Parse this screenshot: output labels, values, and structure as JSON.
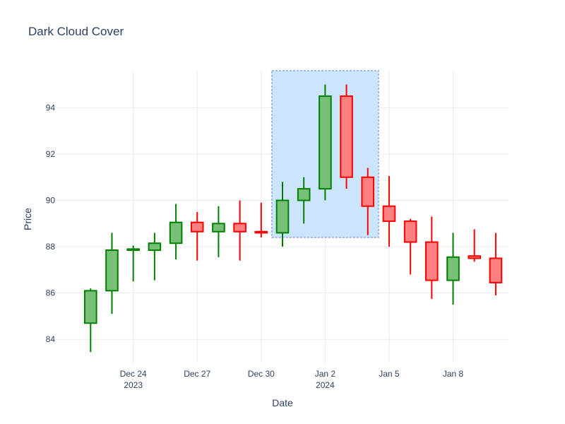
{
  "chart_data": {
    "type": "candlestick",
    "title": "Dark Cloud Cover",
    "xlabel": "Date",
    "ylabel": "Price",
    "ylim": [
      83,
      95.6
    ],
    "yticks": [
      84,
      86,
      88,
      90,
      92,
      94
    ],
    "xrange": [
      "2023-12-21",
      "2024-01-10"
    ],
    "xticks": [
      {
        "date": "2023-12-24",
        "label": "Dec 24",
        "sublabel": "2023"
      },
      {
        "date": "2023-12-27",
        "label": "Dec 27",
        "sublabel": ""
      },
      {
        "date": "2023-12-30",
        "label": "Dec 30",
        "sublabel": ""
      },
      {
        "date": "2024-01-02",
        "label": "Jan 2",
        "sublabel": "2024"
      },
      {
        "date": "2024-01-05",
        "label": "Jan 5",
        "sublabel": ""
      },
      {
        "date": "2024-01-08",
        "label": "Jan 8",
        "sublabel": ""
      }
    ],
    "increasing_color": "#008000",
    "decreasing_color": "#ff0000",
    "highlight": {
      "x0": "2023-12-31",
      "x1": "2024-01-04",
      "y0": 88.4,
      "y1": 95.6,
      "color": "#cce5ff",
      "line_color": "#a0b8f0"
    },
    "candles": [
      {
        "date": "2023-12-22",
        "open": 84.7,
        "high": 86.2,
        "low": 83.45,
        "close": 86.1
      },
      {
        "date": "2023-12-23",
        "open": 86.1,
        "high": 88.6,
        "low": 85.1,
        "close": 87.85
      },
      {
        "date": "2023-12-24",
        "open": 87.85,
        "high": 88.05,
        "low": 86.5,
        "close": 87.9
      },
      {
        "date": "2023-12-25",
        "open": 87.85,
        "high": 88.6,
        "low": 86.55,
        "close": 88.15
      },
      {
        "date": "2023-12-26",
        "open": 88.15,
        "high": 89.85,
        "low": 87.45,
        "close": 89.05
      },
      {
        "date": "2023-12-27",
        "open": 89.05,
        "high": 89.5,
        "low": 87.4,
        "close": 88.65
      },
      {
        "date": "2023-12-28",
        "open": 88.65,
        "high": 89.75,
        "low": 87.55,
        "close": 89.0
      },
      {
        "date": "2023-12-29",
        "open": 89.0,
        "high": 90.0,
        "low": 87.4,
        "close": 88.65
      },
      {
        "date": "2023-12-30",
        "open": 88.65,
        "high": 89.9,
        "low": 88.4,
        "close": 88.6
      },
      {
        "date": "2023-12-31",
        "open": 88.6,
        "high": 90.8,
        "low": 88.0,
        "close": 90.0
      },
      {
        "date": "2024-01-01",
        "open": 90.0,
        "high": 91.0,
        "low": 89.0,
        "close": 90.5
      },
      {
        "date": "2024-01-02",
        "open": 90.5,
        "high": 95.0,
        "low": 90.0,
        "close": 94.5
      },
      {
        "date": "2024-01-03",
        "open": 94.5,
        "high": 95.0,
        "low": 90.5,
        "close": 91.0
      },
      {
        "date": "2024-01-04",
        "open": 91.0,
        "high": 91.4,
        "low": 88.5,
        "close": 89.75
      },
      {
        "date": "2024-01-05",
        "open": 89.75,
        "high": 91.05,
        "low": 88.0,
        "close": 89.1
      },
      {
        "date": "2024-01-06",
        "open": 89.1,
        "high": 89.2,
        "low": 86.8,
        "close": 88.2
      },
      {
        "date": "2024-01-07",
        "open": 88.2,
        "high": 89.3,
        "low": 85.75,
        "close": 86.55
      },
      {
        "date": "2024-01-08",
        "open": 86.55,
        "high": 88.6,
        "low": 85.5,
        "close": 87.55
      },
      {
        "date": "2024-01-09",
        "open": 87.6,
        "high": 88.75,
        "low": 87.35,
        "close": 87.5
      },
      {
        "date": "2024-01-10",
        "open": 87.5,
        "high": 88.6,
        "low": 85.9,
        "close": 86.45
      }
    ]
  }
}
